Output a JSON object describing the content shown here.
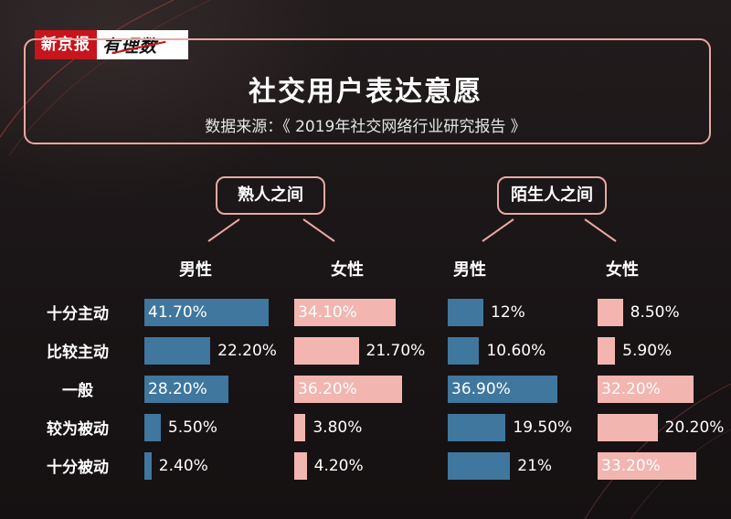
{
  "logo": {
    "part1": "新京报",
    "part2": "有理数"
  },
  "title": "社交用户表达意愿",
  "subtitle": "数据来源：《 2019年社交网络行业研究报告 》",
  "colors": {
    "male": "#3f779e",
    "female": "#f2b5b0",
    "border": "#e8a9a2"
  },
  "chart_data": {
    "type": "bar",
    "categories": [
      "十分主动",
      "比较主动",
      "一般",
      "较为被动",
      "十分被动"
    ],
    "groups": [
      {
        "name": "熟人之间",
        "series": [
          {
            "name": "男性",
            "values": [
              41.7,
              22.2,
              28.2,
              5.5,
              2.4
            ],
            "labels": [
              "41.70%",
              "22.20%",
              "28.20%",
              "5.50%",
              "2.40%"
            ]
          },
          {
            "name": "女性",
            "values": [
              34.1,
              21.7,
              36.2,
              3.8,
              4.2
            ],
            "labels": [
              "34.10%",
              "21.70%",
              "36.20%",
              "3.80%",
              "4.20%"
            ]
          }
        ]
      },
      {
        "name": "陌生人之间",
        "series": [
          {
            "name": "男性",
            "values": [
              12,
              10.6,
              36.9,
              19.5,
              21
            ],
            "labels": [
              "12%",
              "10.60%",
              "36.90%",
              "19.50%",
              "21%"
            ]
          },
          {
            "name": "女性",
            "values": [
              8.5,
              5.9,
              32.2,
              20.2,
              33.2
            ],
            "labels": [
              "8.50%",
              "5.90%",
              "32.20%",
              "20.20%",
              "33.20%"
            ]
          }
        ]
      }
    ]
  }
}
